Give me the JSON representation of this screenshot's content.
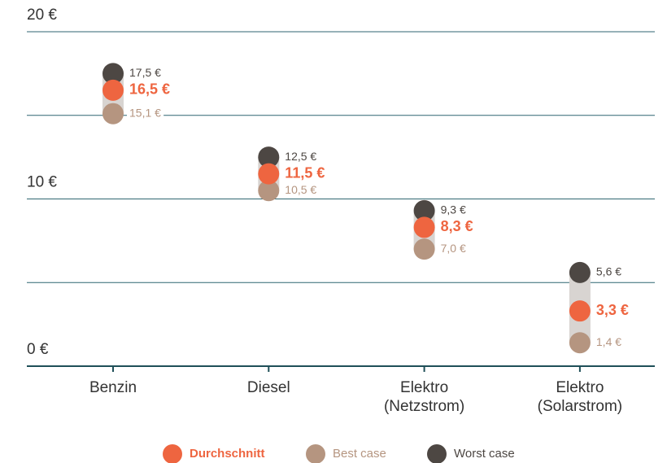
{
  "chart_data": {
    "type": "range_dot",
    "categories": [
      "Benzin",
      "Diesel",
      "Elektro\n(Netzstrom)",
      "Elektro\n(Solarstrom)"
    ],
    "series": [
      {
        "name": "Durchschnitt",
        "color": "#ee6540",
        "values": [
          16.5,
          11.5,
          8.3,
          3.3
        ],
        "value_labels": [
          "16,5 €",
          "11,5 €",
          "8,3 €",
          "3,3 €"
        ]
      },
      {
        "name": "Best case",
        "color": "#b59580",
        "values": [
          15.1,
          10.5,
          7.0,
          1.4
        ],
        "value_labels": [
          "15,1 €",
          "10,5 €",
          "7,0 €",
          "1,4 €"
        ]
      },
      {
        "name": "Worst case",
        "color": "#4d4743",
        "values": [
          17.5,
          12.5,
          9.3,
          5.6
        ],
        "value_labels": [
          "17,5 €",
          "12,5 €",
          "9,3 €",
          "5,6 €"
        ]
      }
    ],
    "range_color": "#d8d4d1",
    "ylim": [
      0,
      20
    ],
    "yticks": [
      {
        "value": 0,
        "label": "0 €"
      },
      {
        "value": 10,
        "label": "10 €"
      },
      {
        "value": 20,
        "label": "20 €"
      }
    ],
    "minor_yticks": [
      5,
      15
    ],
    "grid": true
  }
}
